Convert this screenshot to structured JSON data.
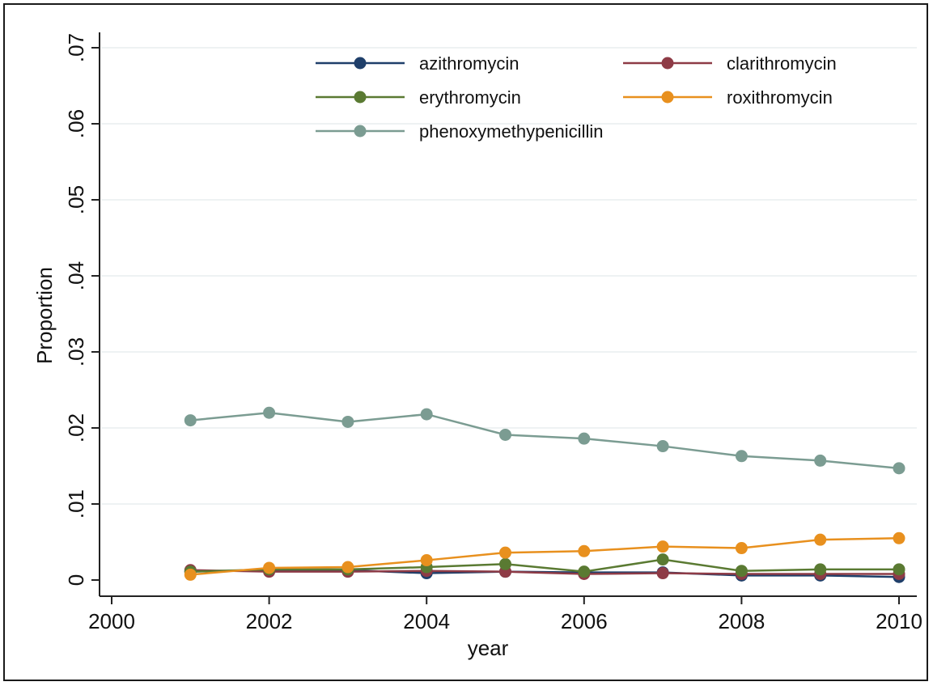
{
  "chart_data": {
    "type": "line",
    "title": "",
    "xlabel": "year",
    "ylabel": "Proportion",
    "xlim": [
      2000,
      2010
    ],
    "ylim": [
      0,
      0.07
    ],
    "x_ticks": [
      {
        "value": 2000,
        "label": "2000"
      },
      {
        "value": 2002,
        "label": "2002"
      },
      {
        "value": 2004,
        "label": "2004"
      },
      {
        "value": 2006,
        "label": "2006"
      },
      {
        "value": 2008,
        "label": "2008"
      },
      {
        "value": 2010,
        "label": "2010"
      }
    ],
    "y_ticks": [
      {
        "value": 0,
        "label": "0"
      },
      {
        "value": 0.01,
        "label": ".01"
      },
      {
        "value": 0.02,
        "label": ".02"
      },
      {
        "value": 0.03,
        "label": ".03"
      },
      {
        "value": 0.04,
        "label": ".04"
      },
      {
        "value": 0.05,
        "label": ".05"
      },
      {
        "value": 0.06,
        "label": ".06"
      },
      {
        "value": 0.07,
        "label": ".07"
      }
    ],
    "grid": "horizontal",
    "legend_position": "top",
    "x": [
      2001,
      2002,
      2003,
      2004,
      2005,
      2006,
      2007,
      2008,
      2009,
      2010
    ],
    "series": [
      {
        "name": "azithromycin",
        "color": "#1f3f6a",
        "values": [
          0.0011,
          0.0013,
          0.0013,
          0.0009,
          0.0011,
          0.001,
          0.001,
          0.0006,
          0.0006,
          0.0004
        ]
      },
      {
        "name": "clarithromycin",
        "color": "#8e3b46",
        "values": [
          0.0013,
          0.0011,
          0.0011,
          0.0012,
          0.0011,
          0.0008,
          0.0009,
          0.0008,
          0.0008,
          0.0008
        ]
      },
      {
        "name": "erythromycin",
        "color": "#5a7a32",
        "values": [
          0.0011,
          0.0014,
          0.0014,
          0.0017,
          0.0021,
          0.0011,
          0.0027,
          0.0012,
          0.0014,
          0.0014
        ]
      },
      {
        "name": "roxithromycin",
        "color": "#e8901e",
        "values": [
          0.0007,
          0.0016,
          0.0017,
          0.0026,
          0.0036,
          0.0038,
          0.0044,
          0.0042,
          0.0053,
          0.0055
        ]
      },
      {
        "name": "phenoxymethypenicillin",
        "color": "#7b9c92",
        "values": [
          0.021,
          0.022,
          0.0208,
          0.0218,
          0.0191,
          0.0186,
          0.0176,
          0.0163,
          0.0157,
          0.0147
        ]
      }
    ]
  }
}
